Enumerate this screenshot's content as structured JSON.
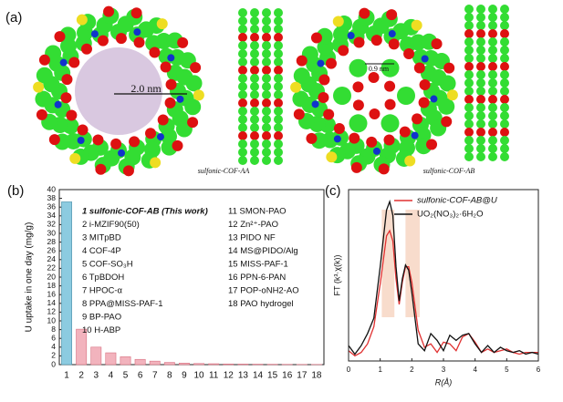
{
  "panel_a": {
    "panel_label": "(a)",
    "left_size": "2.0 nm",
    "right_size": "0.9 nm",
    "left_name": "sulfonic-COF-AA",
    "right_name": "sulfonic-COF-AB"
  },
  "chart_data": [
    {
      "type": "bar",
      "panel_label": "(b)",
      "y_label": "U uptake in one day (mg/g)",
      "categories": [
        "1",
        "2",
        "3",
        "4",
        "5",
        "6",
        "7",
        "8",
        "9",
        "10",
        "11",
        "12",
        "13",
        "14",
        "15",
        "16",
        "17",
        "18"
      ],
      "values": [
        37.2,
        8.1,
        4.0,
        2.7,
        1.8,
        1.2,
        0.8,
        0.5,
        0.35,
        0.25,
        0.2,
        0.15,
        0.12,
        0.1,
        0.08,
        0.06,
        0.05,
        0.04
      ],
      "colors": [
        "#8ccbe0",
        "#f2b3bd",
        "#f2b3bd",
        "#f2b3bd",
        "#f2b3bd",
        "#f2b3bd",
        "#f2b3bd",
        "#f2b3bd",
        "#f2b3bd",
        "#f2b3bd",
        "#f2b3bd",
        "#f2b3bd",
        "#f2b3bd",
        "#f2b3bd",
        "#f2b3bd",
        "#f2b3bd",
        "#f2b3bd",
        "#f2b3bd"
      ],
      "ylim": [
        0,
        40
      ],
      "yticks": [
        0,
        2,
        4,
        6,
        8,
        10,
        12,
        14,
        16,
        18,
        20,
        22,
        24,
        26,
        28,
        30,
        32,
        34,
        36,
        38,
        40
      ],
      "notes": [
        "1 sulfonic-COF-AB (This work)",
        "2 i-MZIF90(50)",
        "3 MITpBD",
        "4 COF-4P",
        "5 COF-SO₃H",
        "6 TpBDOH",
        "7 HPOC-α",
        "8 PPA@MISS-PAF-1",
        "9 BP-PAO",
        "10 H-ABP",
        "11 SMON-PAO",
        "12 Zn²⁺-PAO",
        "13 PIDO NF",
        "14 MS@PIDO/Alg",
        "15 MISS-PAF-1",
        "16 PPN-6-PAN",
        "17 POP-oNH2-AO",
        "18 PAO hydrogel"
      ],
      "note_colors": [
        "#e02020",
        "#111111",
        "#111111",
        "#111111",
        "#111111",
        "#111111",
        "#111111",
        "#111111",
        "#111111",
        "#111111",
        "#111111",
        "#111111",
        "#111111",
        "#111111",
        "#111111",
        "#111111",
        "#111111",
        "#111111"
      ]
    },
    {
      "type": "line",
      "panel_label": "(c)",
      "x_label": "R(Å)",
      "y_label": "FT (k³·χ(k))",
      "x": [
        0,
        0.2,
        0.4,
        0.6,
        0.8,
        1.0,
        1.2,
        1.3,
        1.4,
        1.5,
        1.6,
        1.7,
        1.8,
        1.9,
        2.0,
        2.2,
        2.4,
        2.6,
        2.8,
        3.0,
        3.2,
        3.4,
        3.6,
        3.8,
        4.0,
        4.2,
        4.4,
        4.6,
        4.8,
        5.0,
        5.2,
        5.4,
        5.6,
        5.8,
        6.0
      ],
      "series": [
        {
          "name": "sulfonic-COF-AB@U",
          "color": "#e03030",
          "values": [
            0.6,
            0.3,
            0.5,
            1.0,
            2.0,
            4.5,
            7.3,
            7.6,
            7.0,
            4.8,
            3.3,
            4.6,
            5.5,
            5.5,
            4.6,
            1.8,
            0.8,
            1.0,
            0.5,
            1.1,
            1.0,
            0.6,
            1.4,
            1.6,
            1.1,
            0.5,
            0.7,
            0.5,
            0.6,
            0.7,
            0.5,
            0.4,
            0.5,
            0.5,
            0.5
          ]
        },
        {
          "name": "UO₂(NO₃)₂·6H₂O",
          "color": "#111111",
          "values": [
            0.9,
            0.4,
            0.9,
            1.6,
            2.5,
            5.5,
            8.8,
            9.3,
            8.5,
            5.5,
            3.5,
            4.8,
            5.6,
            5.3,
            4.0,
            1.0,
            0.6,
            1.6,
            1.2,
            0.6,
            1.5,
            1.2,
            1.5,
            1.6,
            1.0,
            0.5,
            0.9,
            0.5,
            0.8,
            0.6,
            0.5,
            0.6,
            0.4,
            0.5,
            0.4
          ]
        }
      ],
      "shaded_regions": [
        [
          1.05,
          1.45
        ],
        [
          1.8,
          2.25
        ]
      ],
      "shade_color": "#f6d3bf",
      "xlim": [
        0,
        6
      ],
      "xticks": [
        0,
        1,
        2,
        3,
        4,
        5,
        6
      ],
      "ylim": [
        0,
        10
      ]
    }
  ]
}
